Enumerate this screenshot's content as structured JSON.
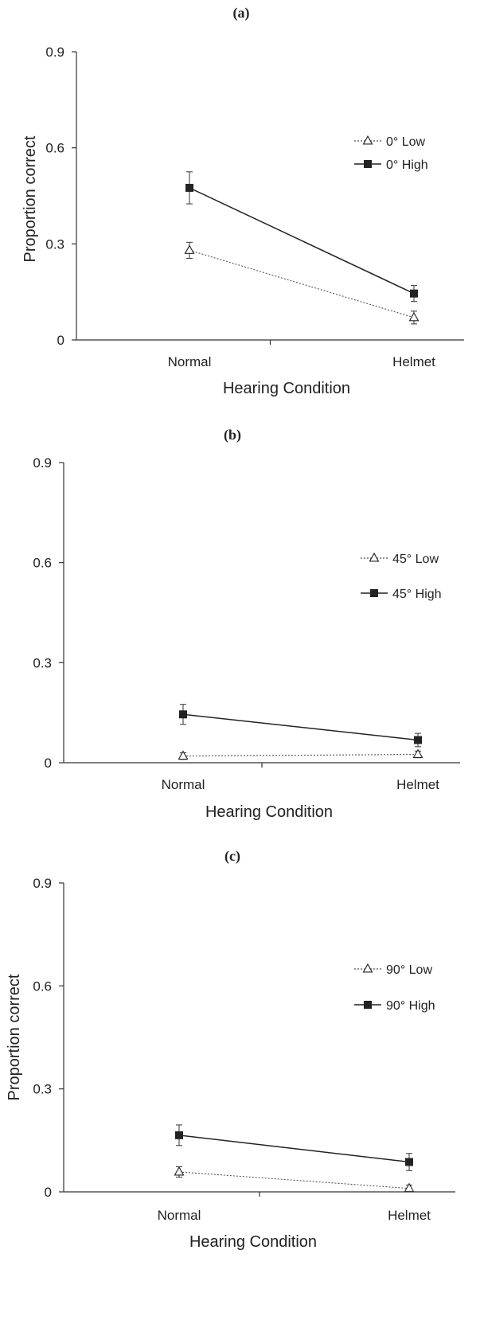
{
  "chart_data": [
    {
      "type": "line",
      "panel_label": "(a)",
      "xlabel": "Hearing Condition",
      "ylabel": "Proportion correct",
      "categories": [
        "Normal",
        "Helmet"
      ],
      "yticks": [
        "0",
        "0.3",
        "0.6",
        "0.9"
      ],
      "ylim": [
        0,
        0.9
      ],
      "legend_position": "right",
      "series": [
        {
          "name": "0° Low",
          "marker": "open-triangle",
          "line": "dotted",
          "values": [
            0.28,
            0.07
          ],
          "errors": [
            0.025,
            0.02
          ]
        },
        {
          "name": "0° High",
          "marker": "filled-square",
          "line": "solid",
          "values": [
            0.475,
            0.145
          ],
          "errors": [
            0.05,
            0.025
          ]
        }
      ]
    },
    {
      "type": "line",
      "panel_label": "(b)",
      "xlabel": "Hearing Condition",
      "ylabel": "",
      "categories": [
        "Normal",
        "Helmet"
      ],
      "yticks": [
        "0",
        "0.3",
        "0.6",
        "0.9"
      ],
      "ylim": [
        0,
        0.9
      ],
      "legend_position": "right",
      "series": [
        {
          "name": "45° Low",
          "marker": "open-triangle",
          "line": "dotted",
          "values": [
            0.02,
            0.025
          ],
          "errors": [
            0.01,
            0.01
          ]
        },
        {
          "name": "45° High",
          "marker": "filled-square",
          "line": "solid",
          "values": [
            0.145,
            0.068
          ],
          "errors": [
            0.03,
            0.02
          ]
        }
      ]
    },
    {
      "type": "line",
      "panel_label": "(c)",
      "xlabel": "Hearing Condition",
      "ylabel": "Proportion correct",
      "categories": [
        "Normal",
        "Helmet"
      ],
      "yticks": [
        "0",
        "0.3",
        "0.6",
        "0.9"
      ],
      "ylim": [
        0,
        0.9
      ],
      "legend_position": "right",
      "series": [
        {
          "name": "90° Low",
          "marker": "open-triangle",
          "line": "dotted",
          "values": [
            0.058,
            0.01
          ],
          "errors": [
            0.015,
            0.01
          ]
        },
        {
          "name": "90° High",
          "marker": "filled-square",
          "line": "solid",
          "values": [
            0.165,
            0.087
          ],
          "errors": [
            0.03,
            0.025
          ]
        }
      ]
    }
  ]
}
